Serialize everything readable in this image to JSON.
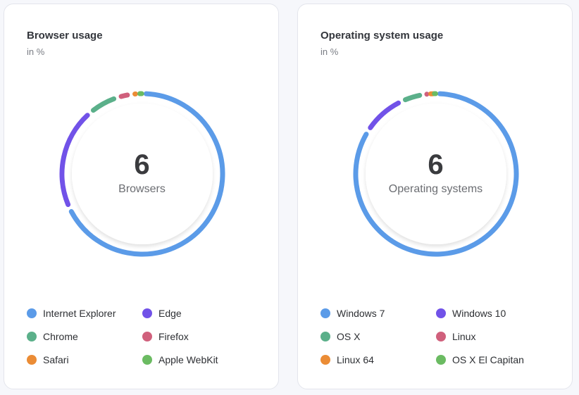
{
  "chart_data": [
    {
      "type": "pie",
      "variant": "donut",
      "title": "Browser usage",
      "subtitle": "in %",
      "center_value": "6",
      "center_label": "Browsers",
      "legend_placement": "bottom",
      "categories": [
        "Internet Explorer",
        "Edge",
        "Chrome",
        "Firefox",
        "Safari",
        "Apple WebKit"
      ],
      "values": [
        68.0,
        20.8,
        6.2,
        2.8,
        1.6,
        0.6
      ],
      "colors": [
        "#5b9be8",
        "#7152e8",
        "#5bb08a",
        "#d0607c",
        "#eb8c35",
        "#6bbb62"
      ]
    },
    {
      "type": "pie",
      "variant": "donut",
      "title": "Operating system usage",
      "subtitle": "in %",
      "center_value": "6",
      "center_label": "Operating systems",
      "legend_placement": "bottom",
      "categories": [
        "Windows 7",
        "Windows 10",
        "OS X",
        "Linux",
        "Linux 64",
        "OS X El Capitan"
      ],
      "values": [
        84.0,
        9.0,
        4.5,
        1.3,
        0.8,
        0.4
      ],
      "colors": [
        "#5b9be8",
        "#7152e8",
        "#5bb08a",
        "#d0607c",
        "#eb8c35",
        "#6bbb62"
      ]
    }
  ]
}
